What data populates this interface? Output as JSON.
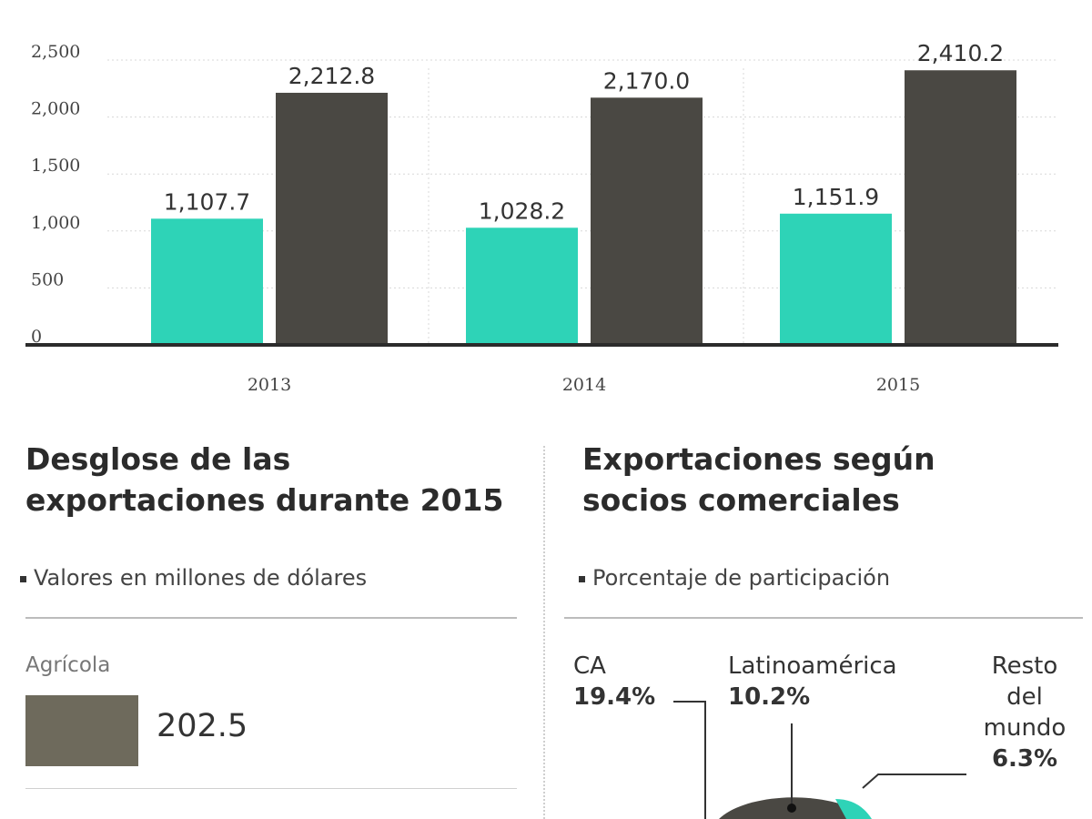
{
  "chart_data": [
    {
      "type": "bar",
      "categories": [
        "2013",
        "2014",
        "2015"
      ],
      "series": [
        {
          "name": "series-1",
          "color": "#2ed3b7",
          "values": [
            1107.7,
            1028.2,
            1151.9
          ]
        },
        {
          "name": "series-2",
          "color": "#4a4843",
          "values": [
            2212.8,
            2170.0,
            2410.2
          ]
        }
      ],
      "value_labels": [
        [
          "1,107.7",
          "2,212.8"
        ],
        [
          "1,028.2",
          "2,170.0"
        ],
        [
          "1,151.9",
          "2,410.2"
        ]
      ],
      "yticks": [
        0,
        500,
        1000,
        1500,
        2000,
        2500
      ],
      "ytick_labels": [
        "0",
        "500",
        "1,000",
        "1,500",
        "2,000",
        "2,500"
      ],
      "ylim": [
        0,
        2500
      ],
      "title": "",
      "xlabel": "",
      "ylabel": ""
    },
    {
      "type": "pie",
      "title": "Exportaciones según socios comerciales",
      "subtitle": "Porcentaje de participación",
      "slices": [
        {
          "label": "CA",
          "value_label": "19.4%",
          "value": 19.4,
          "color": "#4a4843"
        },
        {
          "label": "Latinoamérica",
          "value_label": "10.2%",
          "value": 10.2,
          "color": "#4a4843"
        },
        {
          "label_lines": [
            "Resto",
            "del",
            "mundo"
          ],
          "value_label": "6.3%",
          "value": 6.3,
          "color": "#2ed3b7"
        }
      ]
    }
  ],
  "breakdown": {
    "title_line1": "Desglose de las",
    "title_line2": "exportaciones durante 2015",
    "subtitle": "Valores en millones de dólares",
    "items": [
      {
        "label": "Agrícola",
        "value": "202.5",
        "color": "#6e6a5c"
      }
    ]
  },
  "partners": {
    "title_line1": "Exportaciones según",
    "title_line2": "socios comerciales",
    "subtitle": "Porcentaje de participación"
  }
}
